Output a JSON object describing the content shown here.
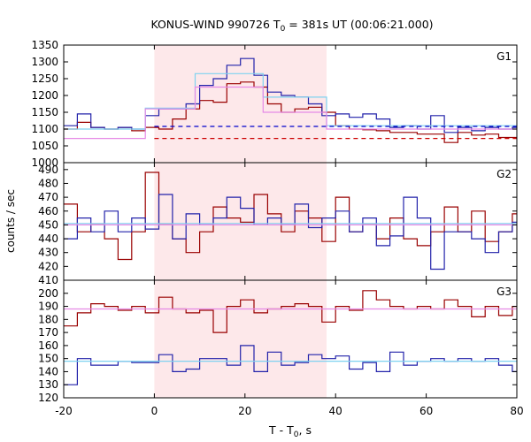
{
  "chart_data": {
    "type": "line",
    "title": "KONUS-WIND 990726 T0 = 381s UT (00:06:21.000)",
    "title_parts": {
      "prefix": "KONUS-WIND 990726 T",
      "sub": "0",
      "suffix": " = 381s UT (00:06:21.000)"
    },
    "xlabel": "T - T0, s",
    "xlabel_parts": {
      "prefix": "T - T",
      "sub": "0",
      "suffix": ", s"
    },
    "ylabel": "counts / sec",
    "xlim": [
      -20,
      80
    ],
    "xticks": [
      -20,
      0,
      20,
      40,
      60,
      80
    ],
    "shaded_interval": [
      0,
      38
    ],
    "colors": {
      "shade": "#fde8ea",
      "dark_red": "#990000",
      "dark_blue": "#2222aa",
      "light_blue": "#7fd2f0",
      "pink": "#e68ae6",
      "red_dashed": "#cc0000",
      "blue_dashed": "#0000cc"
    },
    "panels": [
      {
        "label": "G1",
        "ylim": [
          1000,
          1350
        ],
        "yticks": [
          1000,
          1050,
          1100,
          1150,
          1200,
          1250,
          1300,
          1350
        ],
        "series": [
          {
            "style": "step",
            "color": "#990000",
            "x": [
              -20,
              -17,
              -14,
              -11,
              -8,
              -5,
              -2,
              1,
              4,
              7,
              10,
              13,
              16,
              19,
              22,
              25,
              28,
              31,
              34,
              37,
              40,
              43,
              46,
              49,
              52,
              55,
              58,
              61,
              64,
              67,
              70,
              73,
              76,
              79,
              80
            ],
            "y": [
              1100,
              1120,
              1105,
              1100,
              1105,
              1095,
              1105,
              1100,
              1130,
              1160,
              1185,
              1180,
              1235,
              1240,
              1225,
              1175,
              1150,
              1160,
              1165,
              1150,
              1110,
              1100,
              1098,
              1095,
              1090,
              1090,
              1085,
              1085,
              1060,
              1090,
              1082,
              1085,
              1075,
              1075,
              1075
            ]
          },
          {
            "style": "step",
            "color": "#2222aa",
            "x": [
              -20,
              -17,
              -14,
              -11,
              -8,
              -5,
              -2,
              1,
              4,
              7,
              10,
              13,
              16,
              19,
              22,
              25,
              28,
              31,
              34,
              37,
              40,
              43,
              46,
              49,
              52,
              55,
              58,
              61,
              64,
              67,
              70,
              73,
              76,
              79,
              80
            ],
            "y": [
              1110,
              1145,
              1105,
              1100,
              1105,
              1100,
              1140,
              1160,
              1160,
              1175,
              1230,
              1250,
              1290,
              1310,
              1260,
              1210,
              1200,
              1195,
              1175,
              1140,
              1145,
              1135,
              1145,
              1130,
              1105,
              1110,
              1100,
              1140,
              1090,
              1105,
              1095,
              1105,
              1100,
              1105,
              1105
            ]
          },
          {
            "style": "step",
            "color": "#7fd2f0",
            "x": [
              -20,
              -2,
              9,
              24,
              38,
              80
            ],
            "y": [
              1100,
              1162,
              1265,
              1195,
              1110,
              1110
            ]
          },
          {
            "style": "step",
            "color": "#e68ae6",
            "x": [
              -20,
              -2,
              9,
              24,
              38,
              80
            ],
            "y": [
              1072,
              1160,
              1225,
              1150,
              1100,
              1100
            ]
          },
          {
            "style": "dashed",
            "color": "#0000cc",
            "x": [
              0,
              80
            ],
            "y": [
              1108,
              1108
            ]
          },
          {
            "style": "dashed",
            "color": "#cc0000",
            "x": [
              0,
              80
            ],
            "y": [
              1072,
              1072
            ]
          }
        ]
      },
      {
        "label": "G2",
        "ylim": [
          410,
          495
        ],
        "yticks": [
          410,
          420,
          430,
          440,
          450,
          460,
          470,
          480,
          490
        ],
        "series": [
          {
            "style": "step",
            "color": "#990000",
            "x": [
              -20,
              -17,
              -14,
              -11,
              -8,
              -5,
              -2,
              1,
              4,
              7,
              10,
              13,
              16,
              19,
              22,
              25,
              28,
              31,
              34,
              37,
              40,
              43,
              46,
              49,
              52,
              55,
              58,
              61,
              64,
              67,
              70,
              73,
              76,
              79,
              80
            ],
            "y": [
              465,
              445,
              450,
              440,
              425,
              445,
              488,
              450,
              440,
              430,
              445,
              463,
              455,
              452,
              472,
              458,
              445,
              460,
              455,
              438,
              470,
              445,
              450,
              440,
              455,
              440,
              435,
              445,
              463,
              445,
              460,
              438,
              445,
              458,
              458
            ]
          },
          {
            "style": "step",
            "color": "#2222aa",
            "x": [
              -20,
              -17,
              -14,
              -11,
              -8,
              -5,
              -2,
              1,
              4,
              7,
              10,
              13,
              16,
              19,
              22,
              25,
              28,
              31,
              34,
              37,
              40,
              43,
              46,
              49,
              52,
              55,
              58,
              61,
              64,
              67,
              70,
              73,
              76,
              79,
              80
            ],
            "y": [
              440,
              455,
              445,
              460,
              445,
              455,
              447,
              472,
              440,
              458,
              450,
              455,
              470,
              462,
              450,
              455,
              450,
              465,
              448,
              455,
              460,
              445,
              455,
              435,
              442,
              470,
              455,
              418,
              445,
              445,
              440,
              430,
              445,
              452,
              452
            ]
          },
          {
            "style": "step",
            "color": "#7fd2f0",
            "x": [
              -20,
              80
            ],
            "y": [
              451,
              451
            ]
          },
          {
            "style": "step",
            "color": "#e68ae6",
            "x": [
              -20,
              80
            ],
            "y": [
              450,
              450
            ]
          }
        ]
      },
      {
        "label": "G3",
        "ylim": [
          120,
          210
        ],
        "yticks": [
          120,
          130,
          140,
          150,
          160,
          170,
          180,
          190,
          200
        ],
        "series": [
          {
            "style": "step",
            "color": "#990000",
            "x": [
              -20,
              -17,
              -14,
              -11,
              -8,
              -5,
              -2,
              1,
              4,
              7,
              10,
              13,
              16,
              19,
              22,
              25,
              28,
              31,
              34,
              37,
              40,
              43,
              46,
              49,
              52,
              55,
              58,
              61,
              64,
              67,
              70,
              73,
              76,
              79,
              80
            ],
            "y": [
              175,
              185,
              192,
              190,
              187,
              190,
              185,
              197,
              188,
              185,
              187,
              170,
              190,
              195,
              185,
              188,
              190,
              192,
              190,
              178,
              190,
              187,
              202,
              195,
              190,
              188,
              190,
              188,
              195,
              190,
              182,
              190,
              183,
              190,
              190
            ]
          },
          {
            "style": "step",
            "color": "#2222aa",
            "x": [
              -20,
              -17,
              -14,
              -11,
              -8,
              -5,
              -2,
              1,
              4,
              7,
              10,
              13,
              16,
              19,
              22,
              25,
              28,
              31,
              34,
              37,
              40,
              43,
              46,
              49,
              52,
              55,
              58,
              61,
              64,
              67,
              70,
              73,
              76,
              79,
              80
            ],
            "y": [
              130,
              150,
              145,
              145,
              148,
              147,
              147,
              153,
              140,
              142,
              150,
              150,
              145,
              160,
              140,
              155,
              145,
              147,
              153,
              150,
              152,
              142,
              147,
              140,
              155,
              145,
              148,
              150,
              148,
              150,
              148,
              150,
              145,
              140,
              140
            ]
          },
          {
            "style": "step",
            "color": "#7fd2f0",
            "x": [
              -20,
              80
            ],
            "y": [
              148,
              148
            ]
          },
          {
            "style": "step",
            "color": "#e68ae6",
            "x": [
              -20,
              80
            ],
            "y": [
              188,
              188
            ]
          }
        ]
      }
    ]
  }
}
